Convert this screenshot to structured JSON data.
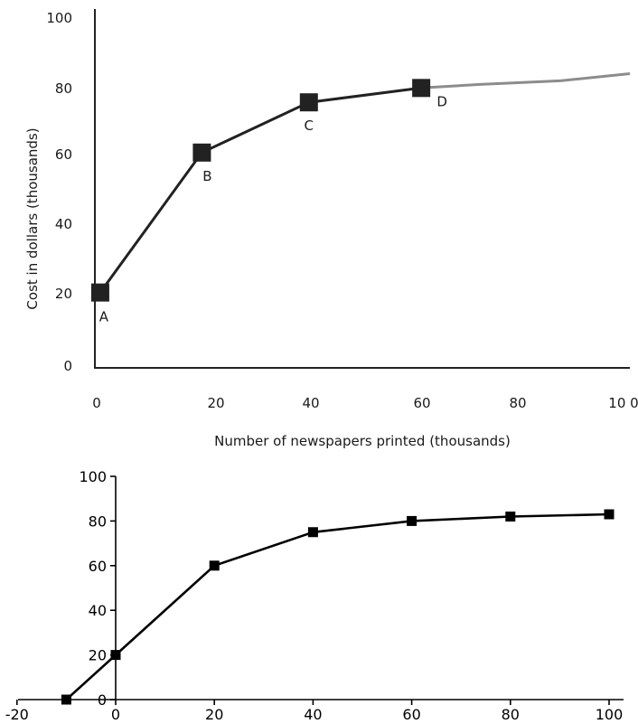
{
  "chart_data": [
    {
      "type": "line",
      "title": "",
      "xlabel": "Number of newspapers printed (thousands)",
      "ylabel": "Cost in dollars (thousands)",
      "xlim": [
        0,
        100
      ],
      "ylim": [
        0,
        100
      ],
      "x_ticks": [
        "0",
        "20",
        "40",
        "60",
        "80",
        "10 0"
      ],
      "y_ticks": [
        "0",
        "20",
        "40",
        "60",
        "80",
        "100"
      ],
      "grid": false,
      "points": [
        {
          "label": "A",
          "x": 1,
          "y": 21
        },
        {
          "label": "B",
          "x": 20,
          "y": 60
        },
        {
          "label": "C",
          "x": 40,
          "y": 74
        },
        {
          "label": "D",
          "x": 61,
          "y": 78
        }
      ],
      "extension": {
        "x": [
          61,
          72,
          87,
          100
        ],
        "y": [
          78,
          79,
          80,
          82
        ],
        "color": "#8c8c8c"
      },
      "line_color": "#222222",
      "marker": "square"
    },
    {
      "type": "line",
      "title": "",
      "xlabel": "",
      "ylabel": "",
      "xlim": [
        -20,
        100
      ],
      "ylim": [
        0,
        100
      ],
      "x_ticks": [
        "-20",
        "0",
        "20",
        "40",
        "60",
        "80",
        "100"
      ],
      "y_ticks": [
        "0",
        "20",
        "40",
        "60",
        "80",
        "100"
      ],
      "grid": false,
      "x": [
        -10,
        0,
        20,
        40,
        60,
        80,
        100
      ],
      "y": [
        0,
        20,
        60,
        75,
        80,
        82,
        83
      ],
      "line_color": "#000000",
      "marker": "square"
    }
  ]
}
